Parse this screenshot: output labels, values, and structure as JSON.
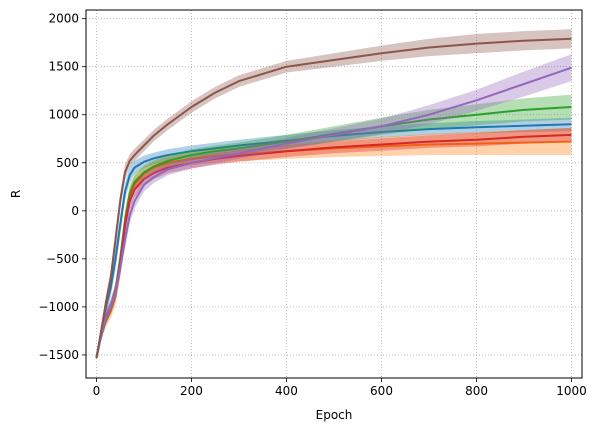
{
  "chart_data": {
    "type": "line",
    "title": "",
    "xlabel": "Epoch",
    "ylabel": "R",
    "xlim": [
      -22,
      1022
    ],
    "ylim": [
      -1740,
      2090
    ],
    "xticks": [
      0,
      200,
      400,
      600,
      800,
      1000
    ],
    "xtick_labels": [
      "0",
      "200",
      "400",
      "600",
      "800",
      "1000"
    ],
    "yticks": [
      -1500,
      -1000,
      -500,
      0,
      500,
      1000,
      1500,
      2000
    ],
    "ytick_labels": [
      "−1500",
      "−1000",
      "−500",
      "0",
      "500",
      "1000",
      "1500",
      "2000"
    ],
    "grid": true,
    "grid_style": "dotted",
    "legend": "none",
    "shaded_band": "spread around each mean curve",
    "series": [
      {
        "color": "#1f77b4",
        "x": [
          0,
          10,
          20,
          30,
          40,
          50,
          60,
          70,
          80,
          100,
          120,
          150,
          200,
          250,
          300,
          400,
          500,
          600,
          700,
          800,
          900,
          1000
        ],
        "values": [
          -1530,
          -1250,
          -1000,
          -800,
          -500,
          -150,
          200,
          370,
          450,
          510,
          545,
          580,
          620,
          650,
          680,
          730,
          780,
          820,
          850,
          870,
          885,
          900
        ],
        "band": [
          20,
          60,
          80,
          100,
          110,
          110,
          90,
          80,
          70,
          65,
          60,
          60,
          60,
          60,
          60,
          60,
          60,
          60,
          60,
          65,
          65,
          70
        ]
      },
      {
        "color": "#ff7f0e",
        "x": [
          0,
          10,
          20,
          30,
          40,
          50,
          60,
          70,
          80,
          100,
          120,
          150,
          200,
          250,
          300,
          400,
          500,
          600,
          700,
          800,
          900,
          1000
        ],
        "values": [
          -1530,
          -1300,
          -1150,
          -1050,
          -900,
          -600,
          -150,
          150,
          280,
          390,
          450,
          500,
          540,
          570,
          590,
          620,
          650,
          670,
          690,
          700,
          710,
          720
        ],
        "band": [
          20,
          50,
          60,
          70,
          80,
          90,
          100,
          90,
          80,
          70,
          60,
          60,
          65,
          70,
          75,
          80,
          90,
          100,
          110,
          120,
          130,
          140
        ]
      },
      {
        "color": "#2ca02c",
        "x": [
          0,
          10,
          20,
          30,
          40,
          50,
          60,
          70,
          80,
          100,
          120,
          150,
          200,
          250,
          300,
          400,
          500,
          600,
          700,
          800,
          900,
          1000
        ],
        "values": [
          -1530,
          -1300,
          -1120,
          -1000,
          -820,
          -500,
          -100,
          180,
          300,
          400,
          460,
          520,
          580,
          620,
          650,
          720,
          800,
          880,
          950,
          1000,
          1050,
          1080
        ],
        "band": [
          20,
          50,
          60,
          70,
          80,
          90,
          100,
          90,
          80,
          70,
          65,
          60,
          60,
          60,
          60,
          70,
          80,
          90,
          100,
          110,
          120,
          130
        ]
      },
      {
        "color": "#d62728",
        "x": [
          0,
          10,
          20,
          30,
          40,
          50,
          60,
          70,
          80,
          100,
          120,
          150,
          200,
          250,
          300,
          400,
          500,
          600,
          700,
          800,
          900,
          1000
        ],
        "values": [
          -1530,
          -1280,
          -1100,
          -1000,
          -850,
          -550,
          -150,
          100,
          220,
          330,
          390,
          450,
          500,
          540,
          570,
          620,
          660,
          690,
          720,
          740,
          770,
          790
        ],
        "band": [
          20,
          50,
          60,
          70,
          80,
          90,
          100,
          90,
          80,
          70,
          65,
          60,
          60,
          60,
          60,
          60,
          60,
          65,
          65,
          70,
          70,
          75
        ]
      },
      {
        "color": "#9467bd",
        "x": [
          0,
          10,
          20,
          30,
          40,
          50,
          60,
          70,
          80,
          100,
          120,
          150,
          200,
          250,
          300,
          400,
          500,
          600,
          700,
          800,
          900,
          1000
        ],
        "values": [
          -1530,
          -1300,
          -1100,
          -1000,
          -850,
          -600,
          -300,
          -50,
          100,
          270,
          350,
          430,
          500,
          550,
          600,
          700,
          790,
          880,
          1000,
          1150,
          1320,
          1490
        ],
        "band": [
          20,
          50,
          60,
          70,
          80,
          90,
          100,
          90,
          80,
          70,
          65,
          60,
          60,
          60,
          60,
          60,
          70,
          80,
          100,
          110,
          130,
          140
        ]
      },
      {
        "color": "#8c564b",
        "x": [
          0,
          10,
          20,
          30,
          40,
          50,
          60,
          70,
          80,
          100,
          120,
          150,
          200,
          250,
          300,
          400,
          500,
          600,
          700,
          800,
          900,
          1000
        ],
        "values": [
          -1530,
          -1250,
          -950,
          -700,
          -300,
          100,
          400,
          520,
          580,
          680,
          780,
          900,
          1080,
          1230,
          1350,
          1500,
          1570,
          1640,
          1700,
          1740,
          1770,
          1790
        ],
        "band": [
          20,
          60,
          80,
          90,
          100,
          90,
          80,
          70,
          65,
          60,
          60,
          60,
          60,
          60,
          60,
          60,
          70,
          80,
          90,
          100,
          100,
          100
        ]
      }
    ]
  }
}
